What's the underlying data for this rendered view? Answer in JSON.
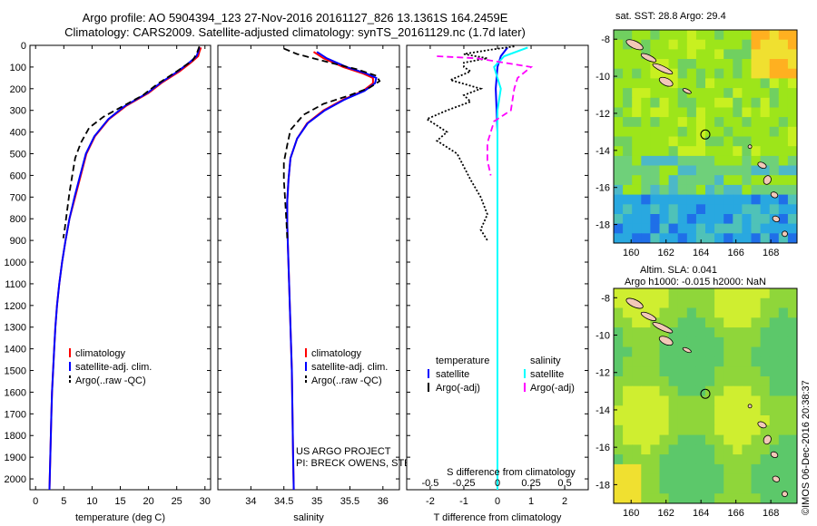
{
  "header": {
    "line1": "Argo profile: AO 5904394_123 27-Nov-2016 20161127_826 13.1361S 164.2459E",
    "line2": "Climatology: CARS2009. Satellite-adjusted climatology: synTS_20161129.nc (1.7d later)"
  },
  "colors": {
    "clim": "#ff0000",
    "sat": "#0000ff",
    "argo": "#000000",
    "sat_s": "#00ffff",
    "argo_s": "#ff00ff"
  },
  "depth_axis": {
    "ylim": [
      0,
      2050
    ],
    "ticks": [
      0,
      100,
      200,
      300,
      400,
      500,
      600,
      700,
      800,
      900,
      1000,
      1100,
      1200,
      1300,
      1400,
      1500,
      1600,
      1700,
      1800,
      1900,
      2000
    ]
  },
  "chart_data": [
    {
      "type": "line",
      "id": "temperature",
      "xlabel": "temperature (deg C)",
      "xlim": [
        -1,
        31
      ],
      "xticks": [
        0,
        5,
        10,
        15,
        20,
        25,
        30
      ],
      "series": [
        {
          "name": "climatology",
          "color_key": "clim",
          "dash": "",
          "points": [
            [
              29.3,
              10
            ],
            [
              29.0,
              30
            ],
            [
              28.8,
              50
            ],
            [
              27.5,
              80
            ],
            [
              25.5,
              120
            ],
            [
              22.5,
              170
            ],
            [
              20.0,
              220
            ],
            [
              16.0,
              280
            ],
            [
              13.0,
              340
            ],
            [
              10.5,
              420
            ],
            [
              9.0,
              500
            ],
            [
              8.0,
              600
            ],
            [
              7.0,
              700
            ],
            [
              6.0,
              800
            ],
            [
              5.3,
              900
            ],
            [
              4.7,
              1000
            ],
            [
              4.2,
              1100
            ],
            [
              3.8,
              1200
            ],
            [
              3.5,
              1300
            ],
            [
              3.3,
              1400
            ],
            [
              3.1,
              1500
            ],
            [
              2.9,
              1600
            ],
            [
              2.8,
              1700
            ],
            [
              2.7,
              1800
            ],
            [
              2.6,
              1900
            ],
            [
              2.5,
              2000
            ],
            [
              2.45,
              2050
            ]
          ]
        },
        {
          "name": "satellite-adj. clim.",
          "color_key": "sat",
          "dash": "",
          "points": [
            [
              29.0,
              10
            ],
            [
              28.8,
              30
            ],
            [
              28.5,
              50
            ],
            [
              27.2,
              80
            ],
            [
              25.2,
              120
            ],
            [
              22.3,
              170
            ],
            [
              19.8,
              220
            ],
            [
              15.8,
              280
            ],
            [
              12.9,
              340
            ],
            [
              10.4,
              420
            ],
            [
              8.9,
              500
            ],
            [
              7.9,
              600
            ],
            [
              6.9,
              700
            ],
            [
              6.0,
              800
            ],
            [
              5.3,
              900
            ],
            [
              4.7,
              1000
            ],
            [
              4.2,
              1100
            ],
            [
              3.8,
              1200
            ],
            [
              3.5,
              1300
            ],
            [
              3.3,
              1400
            ],
            [
              3.1,
              1500
            ],
            [
              2.9,
              1600
            ],
            [
              2.8,
              1700
            ],
            [
              2.7,
              1800
            ],
            [
              2.6,
              1900
            ],
            [
              2.5,
              2000
            ],
            [
              2.45,
              2050
            ]
          ]
        },
        {
          "name": "Argo(..raw -QC)",
          "color_key": "argo",
          "dash": "7,4",
          "points": [
            [
              29.0,
              5
            ],
            [
              28.5,
              40
            ],
            [
              27.8,
              70
            ],
            [
              25.0,
              120
            ],
            [
              21.5,
              180
            ],
            [
              19.0,
              230
            ],
            [
              15.5,
              280
            ],
            [
              12.0,
              330
            ],
            [
              9.5,
              380
            ],
            [
              8.0,
              450
            ],
            [
              7.0,
              520
            ],
            [
              6.5,
              600
            ],
            [
              6.0,
              680
            ],
            [
              5.5,
              780
            ],
            [
              5.1,
              860
            ],
            [
              4.9,
              890
            ]
          ]
        }
      ],
      "legend": {
        "position": "bottom-right"
      }
    },
    {
      "type": "line",
      "id": "salinity",
      "xlabel": "salinity",
      "xlim": [
        33.5,
        36.25
      ],
      "xticks": [
        34,
        34.5,
        35,
        35.5,
        36
      ],
      "xticklabels": [
        "34",
        "34.5",
        "35",
        "35.5",
        "36"
      ],
      "series": [
        {
          "name": "climatology",
          "color_key": "clim",
          "dash": "",
          "points": [
            [
              34.95,
              30
            ],
            [
              35.1,
              60
            ],
            [
              35.4,
              100
            ],
            [
              35.7,
              130
            ],
            [
              35.85,
              150
            ],
            [
              35.85,
              175
            ],
            [
              35.7,
              210
            ],
            [
              35.4,
              250
            ],
            [
              35.1,
              300
            ],
            [
              34.85,
              360
            ],
            [
              34.7,
              430
            ],
            [
              34.6,
              520
            ],
            [
              34.57,
              620
            ],
            [
              34.55,
              720
            ],
            [
              34.55,
              820
            ],
            [
              34.56,
              920
            ],
            [
              34.58,
              1100
            ],
            [
              34.6,
              1300
            ],
            [
              34.62,
              1500
            ],
            [
              34.63,
              1700
            ],
            [
              34.64,
              1900
            ],
            [
              34.65,
              2050
            ]
          ]
        },
        {
          "name": "satellite-adj. clim.",
          "color_key": "sat",
          "dash": "",
          "points": [
            [
              35.0,
              30
            ],
            [
              35.15,
              60
            ],
            [
              35.45,
              100
            ],
            [
              35.75,
              130
            ],
            [
              35.9,
              150
            ],
            [
              35.88,
              175
            ],
            [
              35.72,
              210
            ],
            [
              35.42,
              250
            ],
            [
              35.12,
              300
            ],
            [
              34.86,
              360
            ],
            [
              34.7,
              430
            ],
            [
              34.6,
              520
            ],
            [
              34.57,
              620
            ],
            [
              34.55,
              720
            ],
            [
              34.55,
              820
            ],
            [
              34.56,
              920
            ],
            [
              34.58,
              1100
            ],
            [
              34.6,
              1300
            ],
            [
              34.62,
              1500
            ],
            [
              34.63,
              1700
            ],
            [
              34.64,
              1900
            ],
            [
              34.65,
              2050
            ]
          ]
        },
        {
          "name": "Argo(..raw -QC)",
          "color_key": "argo",
          "dash": "7,4",
          "points": [
            [
              34.5,
              15
            ],
            [
              34.7,
              40
            ],
            [
              35.2,
              80
            ],
            [
              35.6,
              110
            ],
            [
              35.9,
              140
            ],
            [
              35.95,
              165
            ],
            [
              35.8,
              195
            ],
            [
              35.5,
              230
            ],
            [
              35.1,
              270
            ],
            [
              34.8,
              320
            ],
            [
              34.6,
              390
            ],
            [
              34.55,
              460
            ],
            [
              34.5,
              540
            ],
            [
              34.5,
              620
            ],
            [
              34.52,
              720
            ],
            [
              34.54,
              820
            ],
            [
              34.55,
              890
            ]
          ]
        }
      ],
      "legend": {
        "position": "bottom-right"
      },
      "annotation": [
        "US ARGO PROJECT",
        "PI: BRECK OWENS, STEVE JAYNE, P.E. ROBBINS"
      ]
    },
    {
      "type": "line",
      "id": "difference",
      "xlabel": "T difference from climatology",
      "xlabel_top": "S difference from climatology",
      "xlim": [
        -2.7,
        2.7
      ],
      "xticks": [
        -2,
        -1,
        0,
        1,
        2
      ],
      "s_xticks": [
        -0.5,
        -0.25,
        0,
        0.25,
        0.5
      ],
      "s_xticklabels": [
        "-0.5",
        "-0.25",
        "0",
        "0.25",
        "0.5"
      ],
      "series": [
        {
          "name": "satellite",
          "group": "temperature",
          "color_key": "sat",
          "dash": "",
          "points": [
            [
              0.3,
              10
            ],
            [
              0.1,
              50
            ],
            [
              0.0,
              100
            ],
            [
              -0.05,
              200
            ],
            [
              0.0,
              400
            ],
            [
              0.0,
              1000
            ],
            [
              0.0,
              2050
            ]
          ]
        },
        {
          "name": "Argo(-adj)",
          "group": "temperature",
          "color_key": "argo",
          "dash": "2,2",
          "points": [
            [
              0.5,
              5
            ],
            [
              -0.2,
              20
            ],
            [
              -1.0,
              40
            ],
            [
              -0.3,
              60
            ],
            [
              -1.0,
              80
            ],
            [
              -1.0,
              100
            ],
            [
              -0.8,
              120
            ],
            [
              -1.4,
              160
            ],
            [
              -0.5,
              200
            ],
            [
              -1.0,
              230
            ],
            [
              -0.8,
              260
            ],
            [
              -1.5,
              300
            ],
            [
              -2.1,
              340
            ],
            [
              -1.8,
              370
            ],
            [
              -1.5,
              400
            ],
            [
              -1.8,
              440
            ],
            [
              -1.2,
              500
            ],
            [
              -1.0,
              560
            ],
            [
              -0.8,
              620
            ],
            [
              -0.5,
              700
            ],
            [
              -0.3,
              780
            ],
            [
              -0.5,
              850
            ],
            [
              -0.3,
              900
            ]
          ]
        },
        {
          "name": "satellite",
          "group": "salinity",
          "color_key": "sat_s",
          "dash": "",
          "points": [
            [
              0.9,
              10
            ],
            [
              0.2,
              50
            ],
            [
              -0.1,
              100
            ],
            [
              0.1,
              200
            ],
            [
              0.0,
              300
            ],
            [
              0.0,
              600
            ],
            [
              0.0,
              1000
            ],
            [
              0.0,
              2050
            ]
          ]
        },
        {
          "name": "Argo(-adj)",
          "group": "salinity",
          "color_key": "argo_s",
          "dash": "7,4",
          "points": [
            [
              -1.8,
              50
            ],
            [
              -0.6,
              60
            ],
            [
              1.0,
              100
            ],
            [
              0.6,
              150
            ],
            [
              0.5,
              200
            ],
            [
              0.4,
              300
            ],
            [
              -0.1,
              350
            ],
            [
              -0.3,
              450
            ],
            [
              -0.3,
              530
            ],
            [
              -0.2,
              600
            ]
          ]
        }
      ],
      "legend": {
        "position": "top-right",
        "headers": [
          "temperature",
          "salinity"
        ]
      }
    }
  ],
  "maps": [
    {
      "title": "sat. SST: 28.8 Argo: 29.4",
      "xticks": [
        160,
        162,
        164,
        166,
        168
      ],
      "yticks": [
        -8,
        -10,
        -12,
        -14,
        -16,
        -18
      ],
      "lon_range": [
        159,
        169.5
      ],
      "lat_range": [
        -19,
        -7.5
      ],
      "float_position": [
        164.25,
        -13.14
      ]
    },
    {
      "title": "Altim. SLA: 0.041",
      "subtitle": "Argo h1000: -0.015 h2000: NaN",
      "xticks": [
        160,
        162,
        164,
        166,
        168
      ],
      "yticks": [
        -8,
        -10,
        -12,
        -14,
        -16,
        -18
      ],
      "lon_range": [
        159,
        169.5
      ],
      "lat_range": [
        -19,
        -7.5
      ],
      "float_position": [
        164.25,
        -13.14
      ]
    }
  ],
  "credit": "©IMOS 06-Dec-2016 20:38:37"
}
